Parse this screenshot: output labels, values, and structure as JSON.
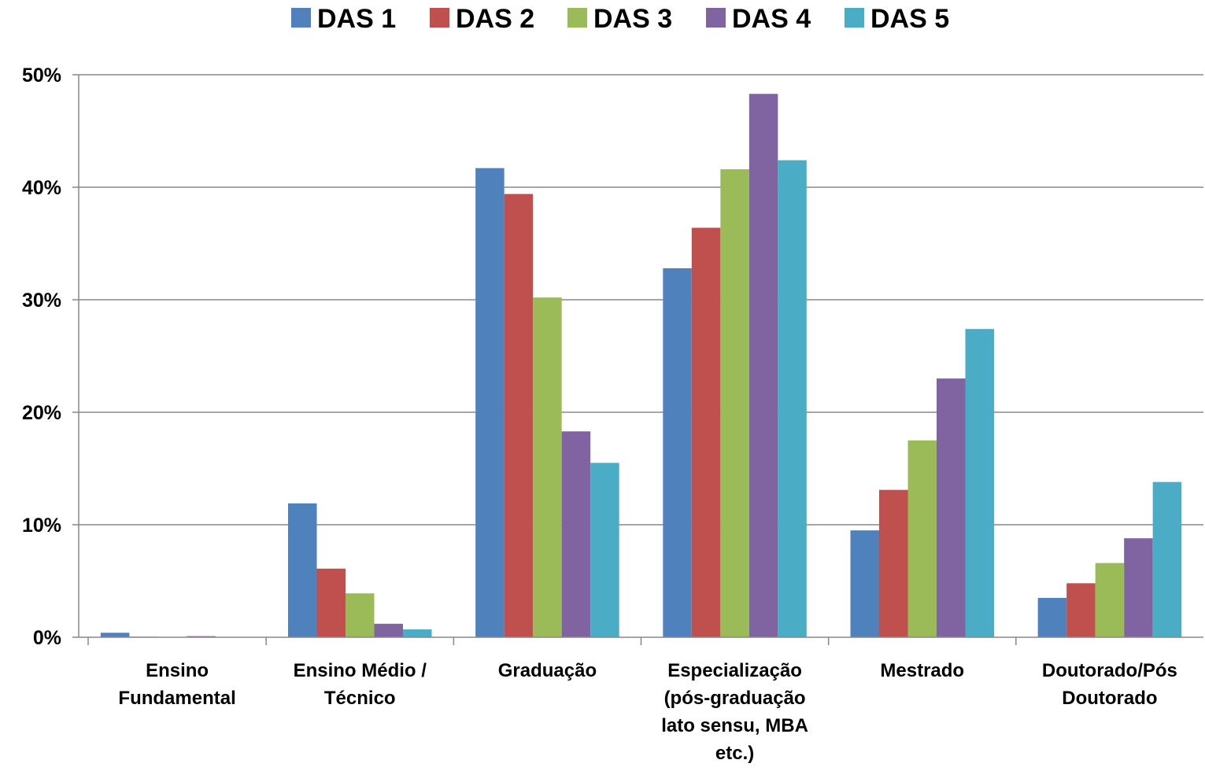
{
  "chart_data": {
    "type": "bar",
    "categories": [
      [
        "Ensino",
        "Fundamental"
      ],
      [
        "Ensino Médio /",
        "Técnico"
      ],
      [
        "Graduação"
      ],
      [
        "Especialização",
        "(pós-graduação",
        "lato sensu, MBA",
        "etc.)"
      ],
      [
        "Mestrado"
      ],
      [
        "Doutorado/Pós",
        "Doutorado"
      ]
    ],
    "series": [
      {
        "name": "DAS 1",
        "color": "#4F81BD",
        "values": [
          0.4,
          11.9,
          41.7,
          32.8,
          9.5,
          3.5
        ]
      },
      {
        "name": "DAS 2",
        "color": "#C0504D",
        "values": [
          0.05,
          6.1,
          39.4,
          36.4,
          13.1,
          4.8
        ]
      },
      {
        "name": "DAS 3",
        "color": "#9BBB59",
        "values": [
          0.0,
          3.9,
          30.2,
          41.6,
          17.5,
          6.6
        ]
      },
      {
        "name": "DAS 4",
        "color": "#8064A2",
        "values": [
          0.1,
          1.2,
          18.3,
          48.3,
          23.0,
          8.8
        ]
      },
      {
        "name": "DAS 5",
        "color": "#4BACC6",
        "values": [
          0.0,
          0.7,
          15.5,
          42.4,
          27.4,
          13.8
        ]
      }
    ],
    "y_ticks": [
      "0%",
      "10%",
      "20%",
      "30%",
      "40%",
      "50%"
    ],
    "ylim": [
      0,
      50
    ],
    "grid": true,
    "legend": "top-center",
    "title": "",
    "xlabel": "",
    "ylabel": ""
  }
}
